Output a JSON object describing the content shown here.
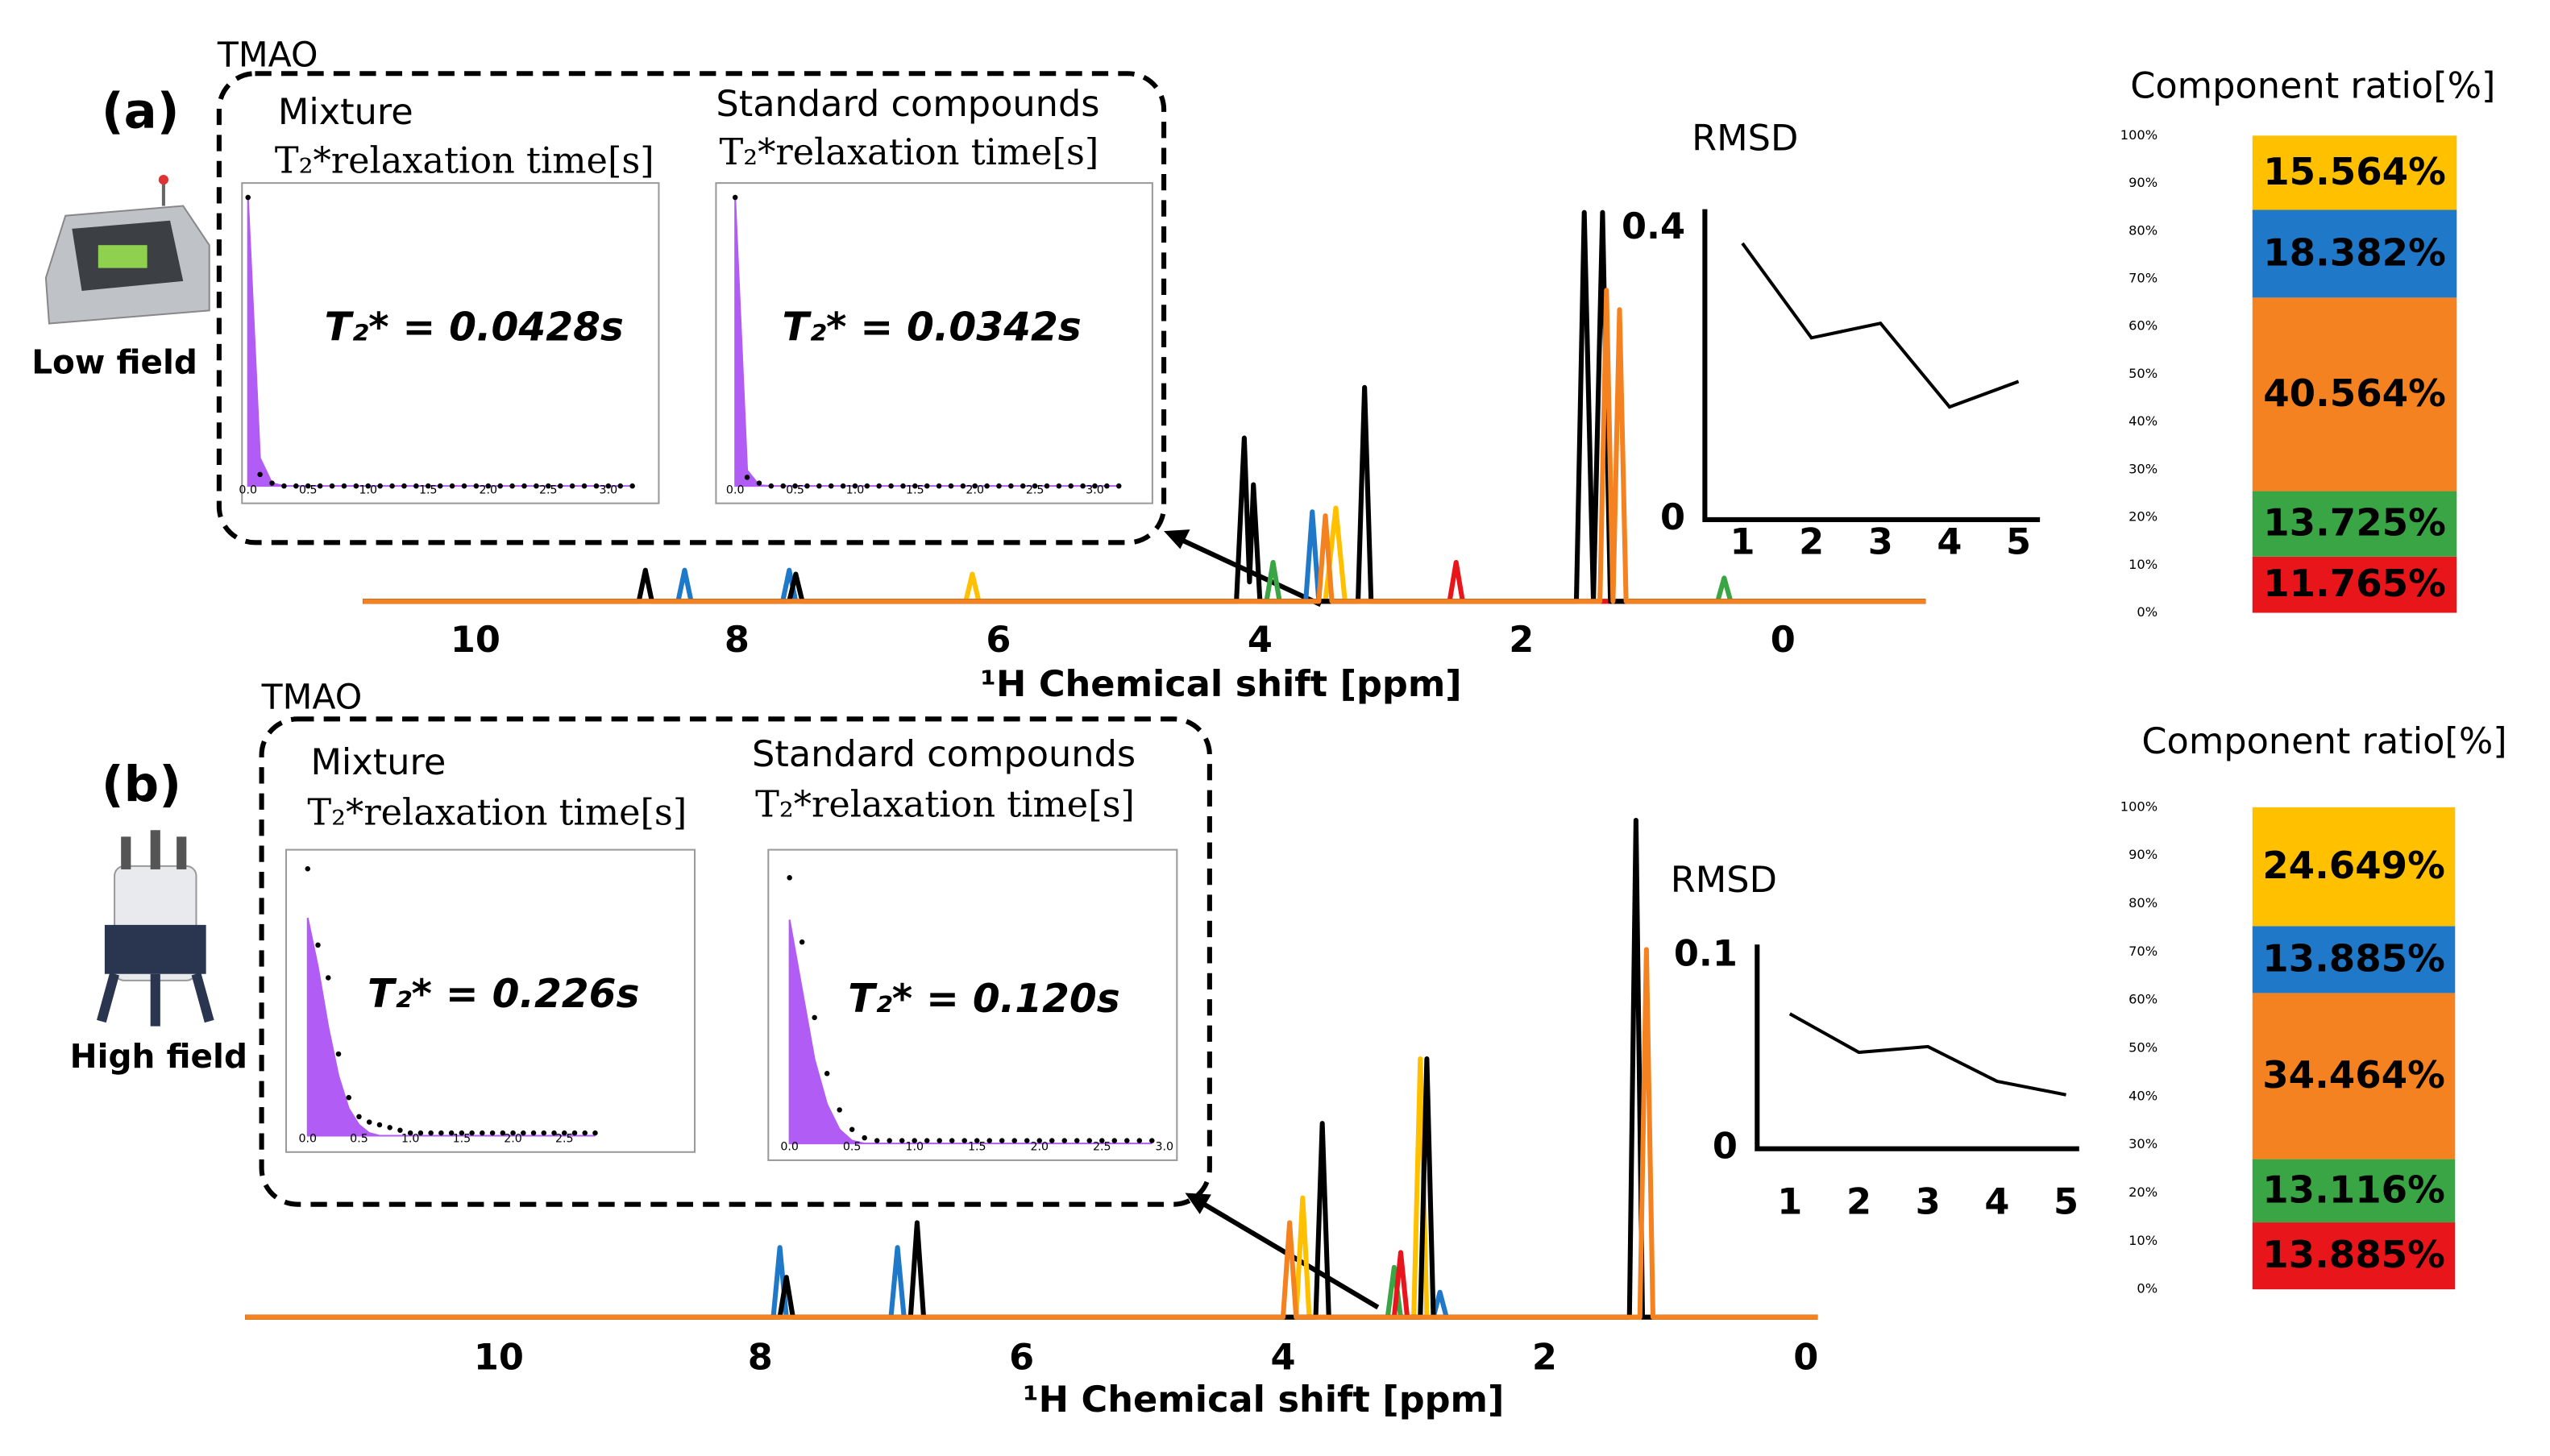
{
  "figures": [
    {
      "label": "(a)",
      "device": "Low field",
      "compound": "TMAO"
    },
    {
      "label": "(b)",
      "device": "High field",
      "compound": "TMAO"
    }
  ],
  "chart_data": [
    {
      "type": "scatter",
      "title": "Mixture",
      "xlabel": "T₂*relaxation time[s]",
      "annotation": "T₂* = 0.0428s",
      "xlim": [
        -0.05,
        3.42
      ],
      "ylim": [
        -0.06,
        1.05
      ],
      "xticks": [
        {
          "value": 0,
          "label": "0.0"
        },
        0.5,
        {
          "value": 1,
          "label": "1.0"
        },
        1.5,
        {
          "value": 2,
          "label": "2.0"
        },
        2.5,
        {
          "value": 3,
          "label": "3.0"
        }
      ],
      "color": "#000000",
      "fill": "#b15cf5",
      "x": [
        0,
        0.1,
        0.2,
        0.3,
        0.4,
        0.5,
        0.6,
        0.7,
        0.8,
        0.9,
        1,
        1.1,
        1.2,
        1.3,
        1.4,
        1.5,
        1.6,
        1.7,
        1.8,
        1.9,
        2,
        2.1,
        2.2,
        2.3,
        2.4,
        2.5,
        2.6,
        2.7,
        2.8,
        2.9,
        3,
        3.1,
        3.2
      ],
      "values": [
        1,
        0.04,
        0.01,
        0,
        0,
        0,
        0,
        0,
        0,
        0,
        0,
        0,
        0,
        0,
        0,
        0,
        0,
        0,
        0,
        0,
        0,
        0,
        0,
        0,
        0,
        0,
        0,
        0,
        0,
        0,
        0,
        0,
        0
      ],
      "fit": [
        1,
        0.097,
        0.01,
        0,
        0,
        0,
        0,
        0,
        0,
        0,
        0,
        0,
        0,
        0,
        0,
        0,
        0,
        0,
        0,
        0,
        0,
        0,
        0,
        0,
        0,
        0,
        0,
        0,
        0,
        0,
        0,
        0,
        0
      ]
    },
    {
      "type": "scatter",
      "title": "Standard compounds",
      "xlabel": "T₂*relaxation time[s]",
      "annotation": "T₂* = 0.0342s",
      "xlim": [
        -0.16,
        3.48
      ],
      "ylim": [
        -0.06,
        1.05
      ],
      "xticks": [
        {
          "value": 0,
          "label": "0.0"
        },
        0.5,
        {
          "value": 1,
          "label": "1.0"
        },
        1.5,
        {
          "value": 2,
          "label": "2.0"
        },
        2.5,
        {
          "value": 3,
          "label": "3.0"
        }
      ],
      "color": "#000000",
      "fill": "#b15cf5",
      "x": [
        0,
        0.1,
        0.2,
        0.3,
        0.4,
        0.5,
        0.6,
        0.7,
        0.8,
        0.9,
        1,
        1.1,
        1.2,
        1.3,
        1.4,
        1.5,
        1.6,
        1.7,
        1.8,
        1.9,
        2,
        2.1,
        2.2,
        2.3,
        2.4,
        2.5,
        2.6,
        2.7,
        2.8,
        2.9,
        3,
        3.1,
        3.2
      ],
      "values": [
        1,
        0.03,
        0.01,
        0,
        0,
        0,
        0,
        0,
        0,
        0,
        0,
        0,
        0,
        0,
        0,
        0,
        0,
        0,
        0,
        0,
        0,
        0,
        0,
        0,
        0,
        0,
        0,
        0,
        0,
        0,
        0,
        0,
        0
      ],
      "fit": [
        1,
        0.054,
        0.003,
        0,
        0,
        0,
        0,
        0,
        0,
        0,
        0,
        0,
        0,
        0,
        0,
        0,
        0,
        0,
        0,
        0,
        0,
        0,
        0,
        0,
        0,
        0,
        0,
        0,
        0,
        0,
        0,
        0,
        0
      ]
    },
    {
      "type": "line",
      "xlabel": "¹H Chemical shift [ppm]",
      "xlim": [
        10.86,
        -1.09
      ],
      "ylim": [
        0,
        1
      ],
      "xticks": [
        10,
        8,
        6,
        4,
        2,
        0
      ],
      "series": [
        {
          "color": "#ffc000",
          "x": [
            10.86,
            6.25,
            6.2,
            6.15,
            3.5,
            3.42,
            3.35,
            -1.09
          ],
          "values": [
            0,
            0,
            0.07,
            0,
            0,
            0.24,
            0,
            0
          ]
        },
        {
          "color": "#1f78c8",
          "x": [
            10.86,
            8.45,
            8.4,
            8.35,
            7.65,
            7.6,
            7.55,
            3.65,
            3.6,
            3.55,
            -1.09
          ],
          "values": [
            0,
            0,
            0.08,
            0,
            0,
            0.08,
            0,
            0,
            0.23,
            0,
            0
          ]
        },
        {
          "color": "#3aa544",
          "x": [
            10.86,
            3.95,
            3.9,
            3.85,
            0.5,
            0.45,
            0.4,
            -1.09
          ],
          "values": [
            0,
            0,
            0.1,
            0,
            0,
            0.06,
            0,
            0
          ]
        },
        {
          "color": "#e8161b",
          "x": [
            10.86,
            2.55,
            2.5,
            2.45,
            -1.09
          ],
          "values": [
            0,
            0,
            0.1,
            0,
            0
          ]
        },
        {
          "color": "#000000",
          "x": [
            10.86,
            8.75,
            8.7,
            8.65,
            7.6,
            7.55,
            7.5,
            4.18,
            4.12,
            4.08,
            4.05,
            4,
            3.25,
            3.2,
            3.15,
            1.58,
            1.52,
            1.45,
            1.38,
            1.32,
            -1.09
          ],
          "values": [
            0,
            0,
            0.08,
            0,
            0,
            0.07,
            0,
            0,
            0.42,
            0.05,
            0.3,
            0,
            0,
            0.55,
            0,
            0,
            1,
            0,
            1,
            0,
            0
          ]
        },
        {
          "color": "#f58220",
          "x": [
            10.86,
            3.55,
            3.5,
            3.45,
            1.4,
            1.35,
            1.3,
            1.25,
            1.2,
            -1.09
          ],
          "values": [
            0,
            0,
            0.22,
            0,
            0,
            0.8,
            0,
            0.75,
            0,
            0
          ]
        }
      ]
    },
    {
      "type": "line",
      "title": "RMSD",
      "xlim": [
        0.456,
        5.31
      ],
      "ylim": [
        0,
        0.4
      ],
      "xticks": [
        1,
        2,
        3,
        4,
        5
      ],
      "yticks": [
        0,
        0.4
      ],
      "series": [
        {
          "color": "#000000",
          "x": [
            1,
            2,
            3,
            4,
            5
          ],
          "values": [
            0.38,
            0.25,
            0.27,
            0.155,
            0.19
          ]
        }
      ]
    },
    {
      "type": "bar",
      "title": "Component ratio[%]",
      "stacked": true,
      "ylim": [
        0,
        100
      ],
      "yticks": [
        {
          "value": 0,
          "label": "0%"
        },
        {
          "value": 10,
          "label": "10%"
        },
        {
          "value": 20,
          "label": "20%"
        },
        {
          "value": 30,
          "label": "30%"
        },
        {
          "value": 40,
          "label": "40%"
        },
        {
          "value": 50,
          "label": "50%"
        },
        {
          "value": 60,
          "label": "60%"
        },
        {
          "value": 70,
          "label": "70%"
        },
        {
          "value": 80,
          "label": "80%"
        },
        {
          "value": 90,
          "label": "90%"
        },
        {
          "value": 100,
          "label": "100%"
        }
      ],
      "series": [
        {
          "color": "#e8161b",
          "label_color": "#5a0000",
          "values": [
            11.765
          ],
          "value_labels": [
            "11.765%"
          ]
        },
        {
          "color": "#3aa544",
          "label_color": "#000000",
          "values": [
            13.725
          ],
          "value_labels": [
            "13.725%"
          ]
        },
        {
          "color": "#f58220",
          "label_color": "#000000",
          "values": [
            40.564
          ],
          "value_labels": [
            "40.564%"
          ]
        },
        {
          "color": "#1f78c8",
          "label_color": "#ffffff",
          "values": [
            18.382
          ],
          "value_labels": [
            "18.382%"
          ]
        },
        {
          "color": "#ffc000",
          "label_color": "#000000",
          "values": [
            15.564
          ],
          "value_labels": [
            "15.564%"
          ]
        }
      ]
    },
    {
      "type": "scatter",
      "title": "Mixture",
      "xlabel": "T₂*relaxation time[s]",
      "annotation": "T₂* = 0.226s",
      "xlim": [
        -0.21,
        3.77
      ],
      "ylim": [
        -0.06,
        1.05
      ],
      "xticks": [
        {
          "value": 0,
          "label": "0.0"
        },
        0.5,
        {
          "value": 1,
          "label": "1.0"
        },
        1.5,
        {
          "value": 2,
          "label": "2.0"
        },
        2.5
      ],
      "color": "#000000",
      "fill": "#b15cf5",
      "x": [
        0,
        0.1,
        0.2,
        0.3,
        0.4,
        0.5,
        0.6,
        0.7,
        0.8,
        0.9,
        1,
        1.1,
        1.2,
        1.3,
        1.4,
        1.5,
        1.6,
        1.7,
        1.8,
        1.9,
        2,
        2.1,
        2.2,
        2.3,
        2.4,
        2.5,
        2.6,
        2.7,
        2.8
      ],
      "values": [
        0.98,
        0.7,
        0.58,
        0.3,
        0.14,
        0.07,
        0.05,
        0.04,
        0.03,
        0.02,
        0.01,
        0.01,
        0.01,
        0.01,
        0.01,
        0.01,
        0.01,
        0.01,
        0.01,
        0.01,
        0.01,
        0.01,
        0.01,
        0.01,
        0.01,
        0.01,
        0.01,
        0.01,
        0.01
      ],
      "fit": [
        0.8,
        0.62,
        0.4,
        0.22,
        0.1,
        0.04,
        0.01,
        0,
        0,
        0,
        0,
        0,
        0,
        0,
        0,
        0,
        0,
        0,
        0,
        0,
        0,
        0,
        0,
        0,
        0,
        0,
        0,
        0,
        0
      ]
    },
    {
      "type": "scatter",
      "title": "Standard compounds",
      "xlabel": "T₂*relaxation time[s]",
      "annotation": "T₂* = 0.120s",
      "xlim": [
        -0.17,
        3.1
      ],
      "ylim": [
        -0.06,
        1.05
      ],
      "xticks": [
        {
          "value": 0,
          "label": "0.0"
        },
        0.5,
        {
          "value": 1,
          "label": "1.0"
        },
        1.5,
        {
          "value": 2,
          "label": "2.0"
        },
        2.5,
        {
          "value": 3,
          "label": "3.0"
        }
      ],
      "color": "#000000",
      "fill": "#b15cf5",
      "x": [
        0,
        0.1,
        0.2,
        0.3,
        0.4,
        0.5,
        0.6,
        0.7,
        0.8,
        0.9,
        1,
        1.1,
        1.2,
        1.3,
        1.4,
        1.5,
        1.6,
        1.7,
        1.8,
        1.9,
        2,
        2.1,
        2.2,
        2.3,
        2.4,
        2.5,
        2.6,
        2.7,
        2.8,
        2.9
      ],
      "values": [
        0.95,
        0.72,
        0.45,
        0.25,
        0.12,
        0.05,
        0.02,
        0.01,
        0.01,
        0.01,
        0.01,
        0.01,
        0.01,
        0.01,
        0.01,
        0.01,
        0.01,
        0.01,
        0.01,
        0.01,
        0.01,
        0.01,
        0.01,
        0.01,
        0.01,
        0.01,
        0.01,
        0.01,
        0.01,
        0.01
      ],
      "fit": [
        0.8,
        0.55,
        0.3,
        0.14,
        0.05,
        0.01,
        0,
        0,
        0,
        0,
        0,
        0,
        0,
        0,
        0,
        0,
        0,
        0,
        0,
        0,
        0,
        0,
        0,
        0,
        0,
        0,
        0,
        0,
        0,
        0
      ]
    },
    {
      "type": "line",
      "xlabel": "¹H Chemical shift [ppm]",
      "xlim": [
        11.94,
        -0.09
      ],
      "ylim": [
        0,
        1
      ],
      "xticks": [
        10,
        8,
        6,
        4,
        2,
        0
      ],
      "series": [
        {
          "color": "#1f78c8",
          "x": [
            11.94,
            7.9,
            7.85,
            7.8,
            7,
            6.95,
            6.9,
            2.85,
            2.8,
            2.75,
            -0.09
          ],
          "values": [
            0,
            0,
            0.14,
            0,
            0,
            0.14,
            0,
            0,
            0.05,
            0,
            0
          ]
        },
        {
          "color": "#3aa544",
          "x": [
            11.94,
            3.2,
            3.15,
            3.1,
            -0.09
          ],
          "values": [
            0,
            0,
            0.1,
            0,
            0
          ]
        },
        {
          "color": "#e8161b",
          "x": [
            11.94,
            3.15,
            3.1,
            3.05,
            -0.09
          ],
          "values": [
            0,
            0,
            0.13,
            0,
            0
          ]
        },
        {
          "color": "#ffc000",
          "x": [
            11.94,
            3.9,
            3.85,
            3.8,
            3,
            2.95,
            2.9,
            -0.09
          ],
          "values": [
            0,
            0,
            0.24,
            0,
            0,
            0.52,
            0,
            0
          ]
        },
        {
          "color": "#000000",
          "x": [
            11.94,
            7.85,
            7.8,
            7.75,
            6.85,
            6.8,
            6.75,
            3.75,
            3.7,
            3.65,
            2.95,
            2.9,
            2.85,
            1.35,
            1.3,
            1.25,
            -0.09
          ],
          "values": [
            0,
            0,
            0.08,
            0,
            0,
            0.19,
            0,
            0,
            0.39,
            0,
            0,
            0.52,
            0,
            0,
            1,
            0,
            0
          ]
        },
        {
          "color": "#f58220",
          "x": [
            11.94,
            4,
            3.95,
            3.9,
            1.27,
            1.22,
            1.17,
            -0.09
          ],
          "values": [
            0,
            0,
            0.19,
            0,
            0,
            0.74,
            0,
            0
          ]
        }
      ]
    },
    {
      "type": "line",
      "title": "RMSD",
      "xlim": [
        0.527,
        5.19
      ],
      "ylim": [
        0,
        0.1
      ],
      "xticks": [
        1,
        2,
        3,
        4,
        5
      ],
      "yticks": [
        0,
        0.1
      ],
      "series": [
        {
          "color": "#000000",
          "x": [
            1,
            2,
            3,
            4,
            5
          ],
          "values": [
            0.07,
            0.05,
            0.053,
            0.035,
            0.028
          ]
        }
      ]
    },
    {
      "type": "bar",
      "title": "Component ratio[%]",
      "stacked": true,
      "ylim": [
        0,
        100
      ],
      "yticks": [
        {
          "value": 0,
          "label": "0%"
        },
        {
          "value": 10,
          "label": "10%"
        },
        {
          "value": 20,
          "label": "20%"
        },
        {
          "value": 30,
          "label": "30%"
        },
        {
          "value": 40,
          "label": "40%"
        },
        {
          "value": 50,
          "label": "50%"
        },
        {
          "value": 60,
          "label": "60%"
        },
        {
          "value": 70,
          "label": "70%"
        },
        {
          "value": 80,
          "label": "80%"
        },
        {
          "value": 90,
          "label": "90%"
        },
        {
          "value": 100,
          "label": "100%"
        }
      ],
      "series": [
        {
          "color": "#e8161b",
          "label_color": "#5a0000",
          "values": [
            13.885
          ],
          "value_labels": [
            "13.885%"
          ]
        },
        {
          "color": "#3aa544",
          "label_color": "#000000",
          "values": [
            13.116
          ],
          "value_labels": [
            "13.116%"
          ]
        },
        {
          "color": "#f58220",
          "label_color": "#000000",
          "values": [
            34.464
          ],
          "value_labels": [
            "34.464%"
          ]
        },
        {
          "color": "#1f78c8",
          "label_color": "#ffffff",
          "values": [
            13.885
          ],
          "value_labels": [
            "13.885%"
          ]
        },
        {
          "color": "#ffc000",
          "label_color": "#000000",
          "values": [
            24.649
          ],
          "value_labels": [
            "24.649%"
          ]
        }
      ]
    }
  ]
}
